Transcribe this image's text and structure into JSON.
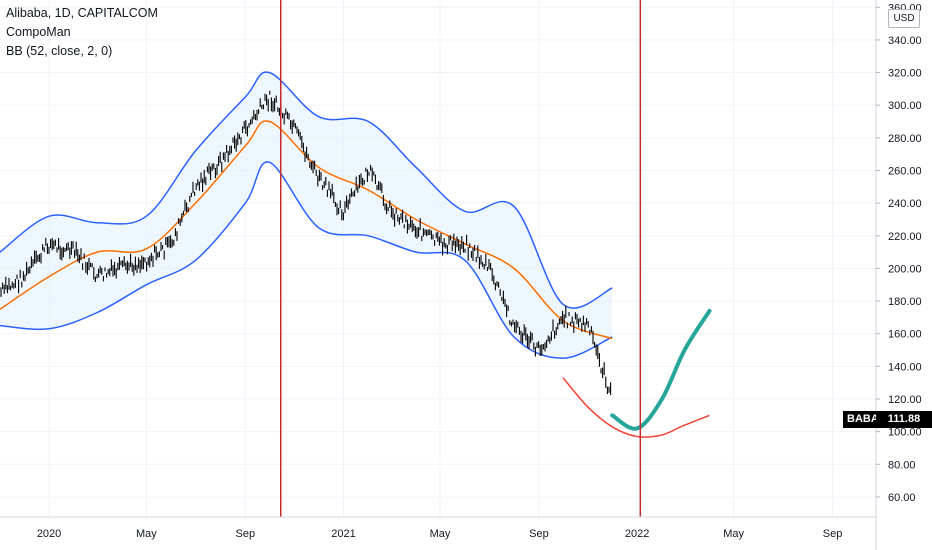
{
  "legend": {
    "symbol": "Alibaba, 1D, CAPITALCOM",
    "indicator1": "CompoMan",
    "indicator2": "BB (52, close, 2, 0)"
  },
  "price_badge": {
    "symbol": "BABA",
    "value": "111.88"
  },
  "currency_button": "USD",
  "colors": {
    "candle": "#000000",
    "bb_band": "#2962ff",
    "bb_basis": "#ff6d00",
    "bb_fill": "#e3f2fd",
    "vertical_marker": "#c62828",
    "projection_arc": "#f44336",
    "projection_path": "#26a69a"
  },
  "chart_data": {
    "type": "line",
    "title": "Alibaba, 1D, CAPITALCOM",
    "y_ticks": [
      "60.00",
      "80.00",
      "100.00",
      "120.00",
      "140.00",
      "160.00",
      "180.00",
      "200.00",
      "220.00",
      "240.00",
      "260.00",
      "280.00",
      "300.00",
      "320.00",
      "340.00",
      "360.00"
    ],
    "x_ticks": [
      "2020",
      "May",
      "Sep",
      "2021",
      "May",
      "Sep",
      "2022",
      "May",
      "Sep"
    ],
    "ylim": [
      52,
      362
    ],
    "last_price": 111.88,
    "series": [
      {
        "x": [
          "2019-11",
          "2019-12",
          "2020-01",
          "2020-02",
          "2020-03",
          "2020-04",
          "2020-05",
          "2020-06",
          "2020-07",
          "2020-08",
          "2020-09",
          "2020-10",
          "2020-11",
          "2020-12",
          "2021-01",
          "2021-02",
          "2021-03",
          "2021-04",
          "2021-05",
          "2021-06",
          "2021-07",
          "2021-08",
          "2021-09",
          "2021-10",
          "2021-11",
          "2021-12"
        ],
        "values": [
          185,
          195,
          215,
          210,
          195,
          200,
          205,
          215,
          250,
          265,
          285,
          305,
          285,
          255,
          235,
          260,
          235,
          225,
          215,
          215,
          200,
          165,
          150,
          170,
          165,
          120
        ]
      },
      {
        "x": [
          "2019-11",
          "2020-01",
          "2020-03",
          "2020-05",
          "2020-07",
          "2020-09",
          "2020-10",
          "2020-12",
          "2021-02",
          "2021-04",
          "2021-06",
          "2021-08",
          "2021-10",
          "2021-12"
        ],
        "values": [
          175,
          195,
          210,
          212,
          240,
          275,
          290,
          262,
          248,
          230,
          215,
          200,
          168,
          157
        ]
      },
      {
        "x": [
          "2019-11",
          "2020-01",
          "2020-03",
          "2020-05",
          "2020-07",
          "2020-09",
          "2020-10",
          "2020-12",
          "2021-02",
          "2021-04",
          "2021-06",
          "2021-08",
          "2021-10",
          "2021-12"
        ],
        "values": [
          210,
          232,
          228,
          232,
          272,
          305,
          320,
          293,
          290,
          262,
          235,
          238,
          178,
          188
        ]
      },
      {
        "x": [
          "2019-11",
          "2020-01",
          "2020-03",
          "2020-05",
          "2020-07",
          "2020-09",
          "2020-10",
          "2020-12",
          "2021-02",
          "2021-04",
          "2021-06",
          "2021-08",
          "2021-10",
          "2021-12"
        ],
        "values": [
          165,
          163,
          173,
          190,
          205,
          240,
          265,
          225,
          220,
          210,
          205,
          158,
          145,
          158
        ]
      },
      {
        "x": [
          "2021-10",
          "2021-11",
          "2021-12",
          "2022-01",
          "2022-02",
          "2022-03",
          "2022-04"
        ],
        "values": [
          133,
          115,
          103,
          97,
          98,
          104,
          110
        ]
      },
      {
        "x": [
          "2021-12",
          "2022-01",
          "2022-02",
          "2022-03",
          "2022-04"
        ],
        "values": [
          110,
          102,
          120,
          150,
          174
        ]
      }
    ]
  }
}
